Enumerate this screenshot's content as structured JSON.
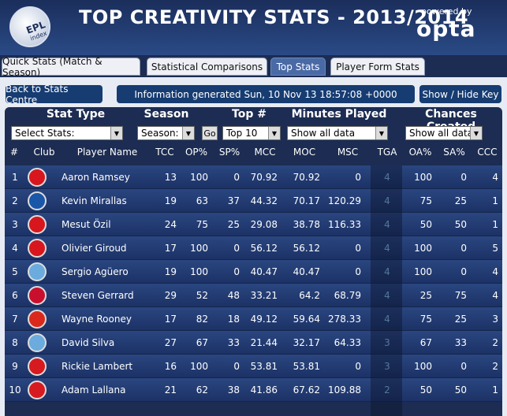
{
  "header": {
    "title": "TOP CREATIVITY STATS - 2013/2014",
    "logo_text": "EPL",
    "logo_sub": "index",
    "powered_by": "powered by",
    "brand": "opta"
  },
  "tabs": [
    {
      "label": "Quick Stats (Match & Season)",
      "active": false
    },
    {
      "label": "Statistical Comparisons",
      "active": false
    },
    {
      "label": "Top Stats",
      "active": true
    },
    {
      "label": "Player Form Stats",
      "active": false
    }
  ],
  "toolbar": {
    "back_label": "Back to Stats Centre",
    "info_text": "Information generated Sun, 10 Nov 13 18:57:08 +0000",
    "key_label": "Show / Hide Key"
  },
  "groups": {
    "stat_type": "Stat Type",
    "season": "Season",
    "top": "Top #",
    "minutes": "Minutes Played",
    "chances": "Chances Created"
  },
  "filters": {
    "stat_type_value": "Select Stats:",
    "season_value": "Season:",
    "go_label": "Go",
    "top_value": "Top 10",
    "minutes_value": "Show all data",
    "chances_value": "Show all data"
  },
  "columns": [
    "#",
    "Club",
    "Player Name",
    "TCC",
    "OP%",
    "SP%",
    "MCC",
    "MOC",
    "MSC",
    "TGA",
    "OA%",
    "SA%",
    "CCC"
  ],
  "rows": [
    {
      "rank": "1",
      "club_color": "#d8161d",
      "player": "Aaron Ramsey",
      "tcc": "13",
      "op": "100",
      "sp": "0",
      "mcc": "70.92",
      "moc": "70.92",
      "msc": "0",
      "tga": "4",
      "oa": "100",
      "sa": "0",
      "ccc": "4"
    },
    {
      "rank": "2",
      "club_color": "#1a57a8",
      "player": "Kevin Mirallas",
      "tcc": "19",
      "op": "63",
      "sp": "37",
      "mcc": "44.32",
      "moc": "70.17",
      "msc": "120.29",
      "tga": "4",
      "oa": "75",
      "sa": "25",
      "ccc": "1"
    },
    {
      "rank": "3",
      "club_color": "#d8161d",
      "player": "Mesut Özil",
      "tcc": "24",
      "op": "75",
      "sp": "25",
      "mcc": "29.08",
      "moc": "38.78",
      "msc": "116.33",
      "tga": "4",
      "oa": "50",
      "sa": "50",
      "ccc": "1"
    },
    {
      "rank": "4",
      "club_color": "#d8161d",
      "player": "Olivier Giroud",
      "tcc": "17",
      "op": "100",
      "sp": "0",
      "mcc": "56.12",
      "moc": "56.12",
      "msc": "0",
      "tga": "4",
      "oa": "100",
      "sa": "0",
      "ccc": "5"
    },
    {
      "rank": "5",
      "club_color": "#6cabdd",
      "player": "Sergio Agüero",
      "tcc": "19",
      "op": "100",
      "sp": "0",
      "mcc": "40.47",
      "moc": "40.47",
      "msc": "0",
      "tga": "4",
      "oa": "100",
      "sa": "0",
      "ccc": "4"
    },
    {
      "rank": "6",
      "club_color": "#c8102e",
      "player": "Steven Gerrard",
      "tcc": "29",
      "op": "52",
      "sp": "48",
      "mcc": "33.21",
      "moc": "64.2",
      "msc": "68.79",
      "tga": "4",
      "oa": "25",
      "sa": "75",
      "ccc": "4"
    },
    {
      "rank": "7",
      "club_color": "#da291c",
      "player": "Wayne Rooney",
      "tcc": "17",
      "op": "82",
      "sp": "18",
      "mcc": "49.12",
      "moc": "59.64",
      "msc": "278.33",
      "tga": "4",
      "oa": "75",
      "sa": "25",
      "ccc": "3"
    },
    {
      "rank": "8",
      "club_color": "#6cabdd",
      "player": "David Silva",
      "tcc": "27",
      "op": "67",
      "sp": "33",
      "mcc": "21.44",
      "moc": "32.17",
      "msc": "64.33",
      "tga": "3",
      "oa": "67",
      "sa": "33",
      "ccc": "2"
    },
    {
      "rank": "9",
      "club_color": "#d71920",
      "player": "Rickie Lambert",
      "tcc": "16",
      "op": "100",
      "sp": "0",
      "mcc": "53.81",
      "moc": "53.81",
      "msc": "0",
      "tga": "3",
      "oa": "100",
      "sa": "0",
      "ccc": "2"
    },
    {
      "rank": "10",
      "club_color": "#d71920",
      "player": "Adam Lallana",
      "tcc": "21",
      "op": "62",
      "sp": "38",
      "mcc": "41.86",
      "moc": "67.62",
      "msc": "109.88",
      "tga": "2",
      "oa": "50",
      "sa": "50",
      "ccc": "1"
    }
  ]
}
